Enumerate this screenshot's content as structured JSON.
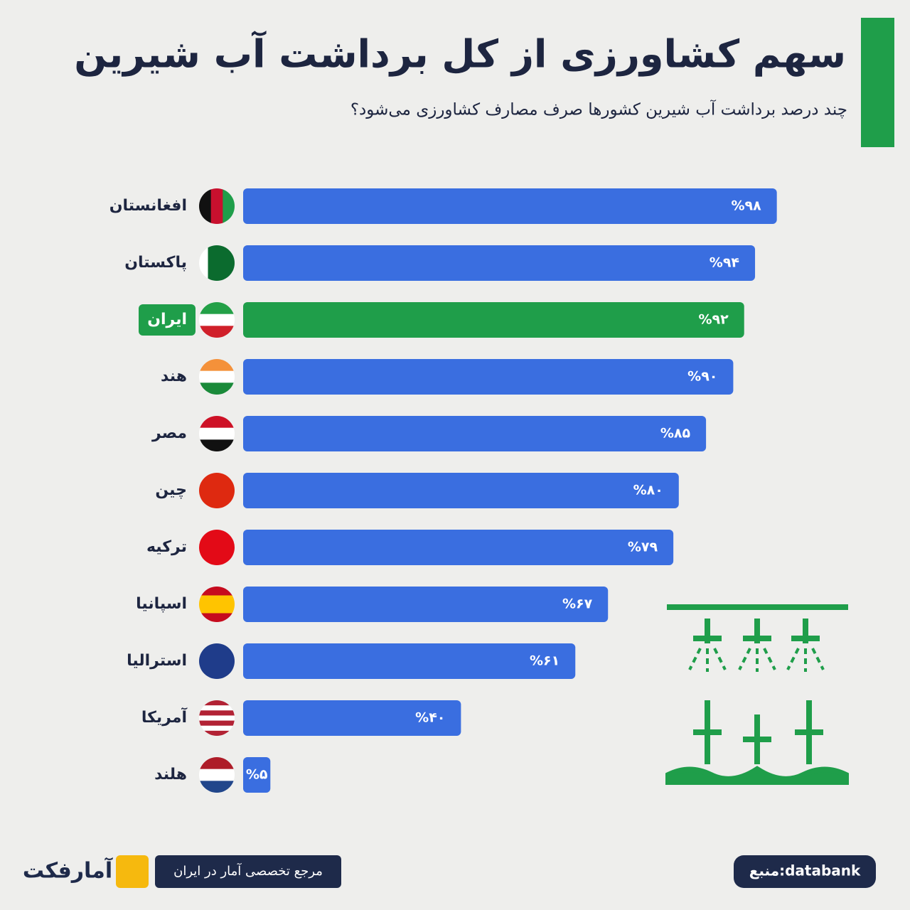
{
  "chart_data": {
    "type": "barh",
    "title": "سهم کشاورزی از کل برداشت آب شیرین",
    "subtitle": "چند درصد برداشت آب شیرین کشورها صرف مصارف کشاورزی می‌شود؟",
    "categories": [
      "افغانستان",
      "پاکستان",
      "ایران",
      "هند",
      "مصر",
      "چین",
      "ترکیه",
      "اسپانیا",
      "استرالیا",
      "آمریکا",
      "هلند"
    ],
    "values": [
      98,
      94,
      92,
      90,
      85,
      80,
      79,
      67,
      61,
      40,
      5
    ],
    "value_labels": [
      "%۹۸",
      "%۹۴",
      "%۹۲",
      "%۹۰",
      "%۸۵",
      "%۸۰",
      "%۷۹",
      "%۶۷",
      "%۶۱",
      "%۴۰",
      "%۵"
    ],
    "colors": [
      "#3a6ee0",
      "#3a6ee0",
      "#1f9e4a",
      "#3a6ee0",
      "#3a6ee0",
      "#3a6ee0",
      "#3a6ee0",
      "#3a6ee0",
      "#3a6ee0",
      "#3a6ee0",
      "#3a6ee0"
    ],
    "xlim": [
      0,
      100
    ],
    "source": "منبع:databank",
    "tagline": "مرجع تخصصی آمار در ایران",
    "brand": "آمارفکت"
  }
}
